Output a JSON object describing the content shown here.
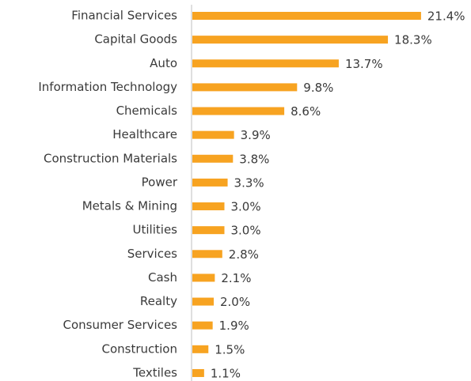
{
  "chart_data": {
    "type": "bar",
    "orientation": "horizontal",
    "categories": [
      "Financial Services",
      "Capital Goods",
      "Auto",
      "Information Technology",
      "Chemicals",
      "Healthcare",
      "Construction Materials",
      "Power",
      "Metals & Mining",
      "Utilities",
      "Services",
      "Cash",
      "Realty",
      "Consumer Services",
      "Construction",
      "Textiles"
    ],
    "values": [
      21.4,
      18.3,
      13.7,
      9.8,
      8.6,
      3.9,
      3.8,
      3.3,
      3.0,
      3.0,
      2.8,
      2.1,
      2.0,
      1.9,
      1.5,
      1.1
    ],
    "value_labels": [
      "21.4%",
      "18.3%",
      "13.7%",
      "9.8%",
      "8.6%",
      "3.9%",
      "3.8%",
      "3.3%",
      "3.0%",
      "3.0%",
      "2.8%",
      "2.1%",
      "2.0%",
      "1.9%",
      "1.5%",
      "1.1%"
    ],
    "color": "#f7a321"
  }
}
